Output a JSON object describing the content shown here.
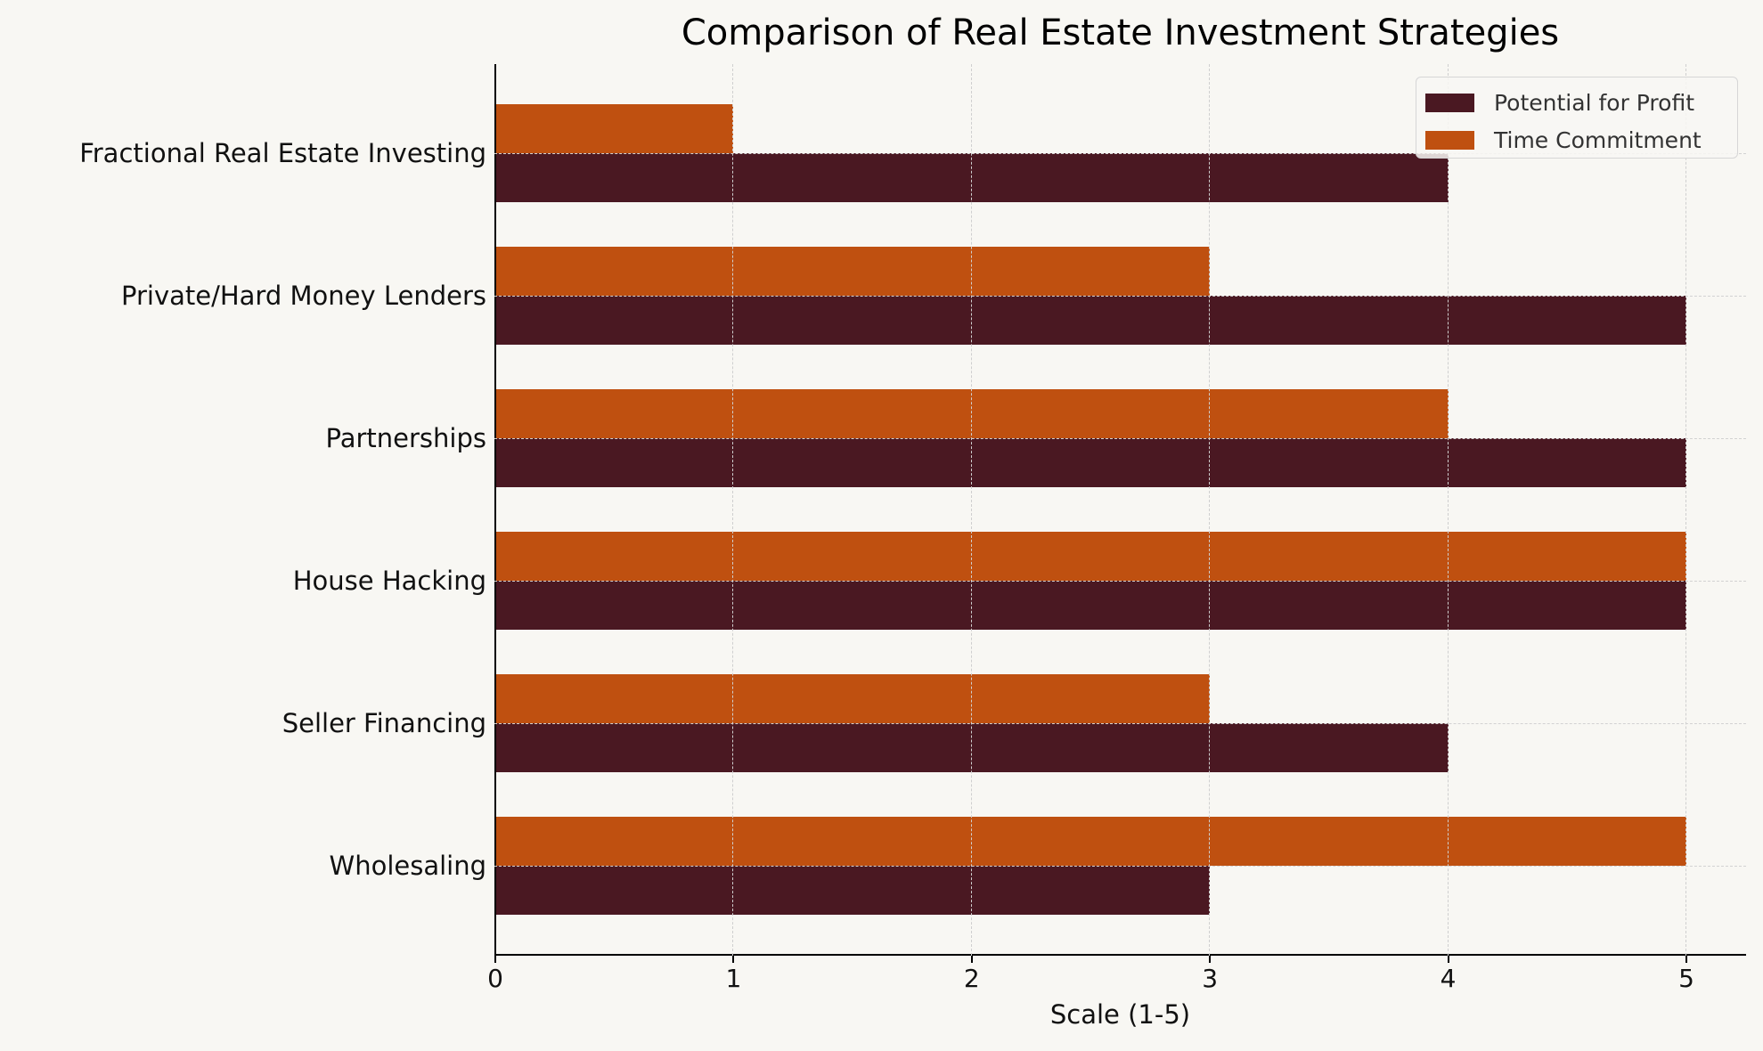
{
  "chart_data": {
    "type": "bar",
    "orientation": "horizontal",
    "title": "Comparison of Real Estate Investment Strategies",
    "xlabel": "Scale (1-5)",
    "ylabel": "",
    "xlim": [
      0,
      5.27
    ],
    "xticks": [
      "0",
      "1",
      "2",
      "3",
      "4",
      "5"
    ],
    "grid": true,
    "legend_position": "upper right",
    "categories": [
      "Wholesaling",
      "Seller Financing",
      "House Hacking",
      "Partnerships",
      "Private/Hard Money Lenders",
      "Fractional Real Estate Investing"
    ],
    "series": [
      {
        "name": "Potential for Profit",
        "color": "#4a1822",
        "values": [
          3,
          4,
          5,
          5,
          5,
          4
        ]
      },
      {
        "name": "Time Commitment",
        "color": "#bf5010",
        "values": [
          5,
          3,
          5,
          4,
          3,
          1
        ]
      }
    ]
  },
  "colors": {
    "background": "#f8f7f3",
    "profit": "#4a1822",
    "time": "#bf5010"
  }
}
